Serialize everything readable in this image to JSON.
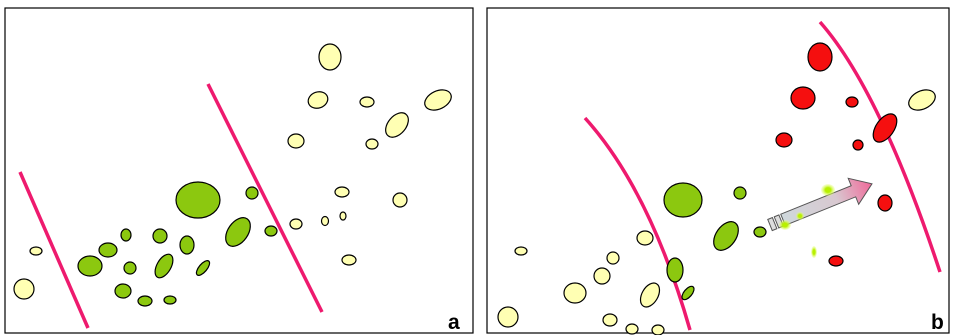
{
  "panels": [
    {
      "label": "a"
    },
    {
      "label": "b"
    }
  ]
}
